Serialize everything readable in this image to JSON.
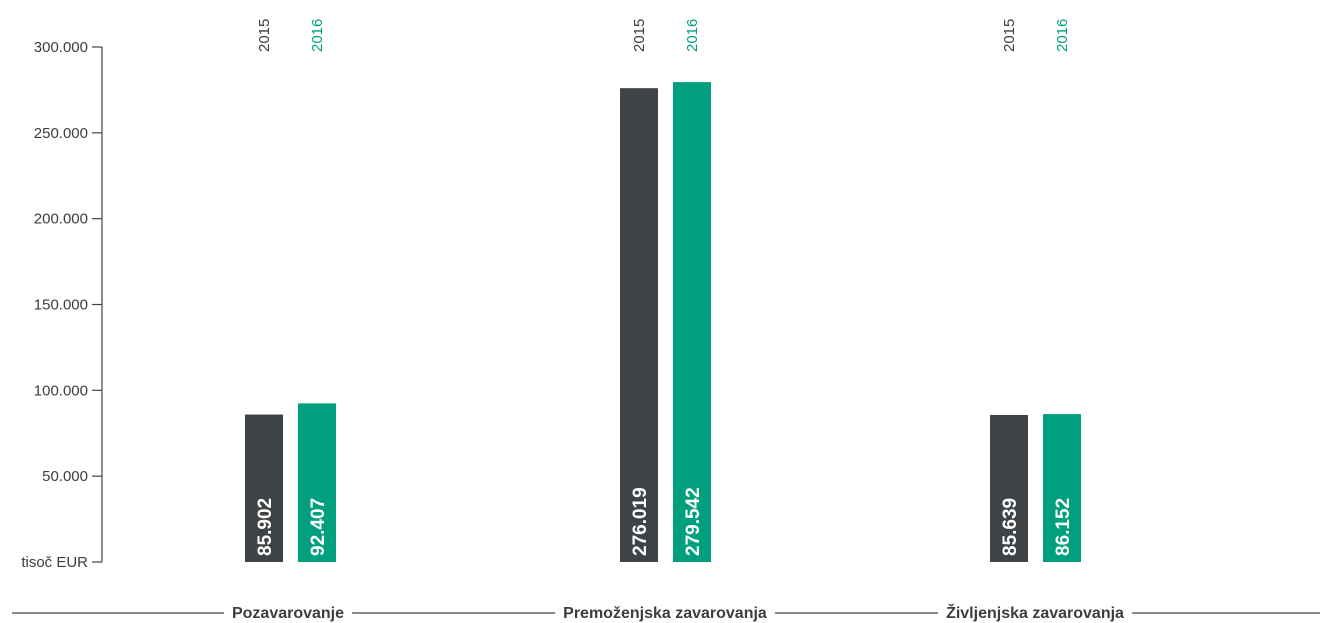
{
  "colors": {
    "series_2015": "#404346",
    "series_2016": "#00a07e",
    "axis": "#404346",
    "text": "#3d3d3d",
    "value_label": "#ffffff"
  },
  "chart_data": {
    "type": "bar",
    "categories": [
      "Pozavarovanje",
      "Premoženjska zavarovanja",
      "Življenjska zavarovanja"
    ],
    "series": [
      {
        "name": "2015",
        "values": [
          85902,
          276019,
          85639
        ],
        "labels": [
          "85.902",
          "276.019",
          "85.639"
        ]
      },
      {
        "name": "2016",
        "values": [
          92407,
          279542,
          86152
        ],
        "labels": [
          "92.407",
          "279.542",
          "86.152"
        ]
      }
    ],
    "y_ticks": [
      0,
      50000,
      100000,
      150000,
      200000,
      250000,
      300000
    ],
    "y_tick_labels": [
      "tisoč EUR",
      "50.000",
      "100.000",
      "150.000",
      "200.000",
      "250.000",
      "300.000"
    ],
    "ylim": [
      0,
      300000
    ],
    "xlabel": "",
    "ylabel": "tisoč EUR",
    "title": "",
    "grid": false,
    "value_labels_rotated": true
  }
}
